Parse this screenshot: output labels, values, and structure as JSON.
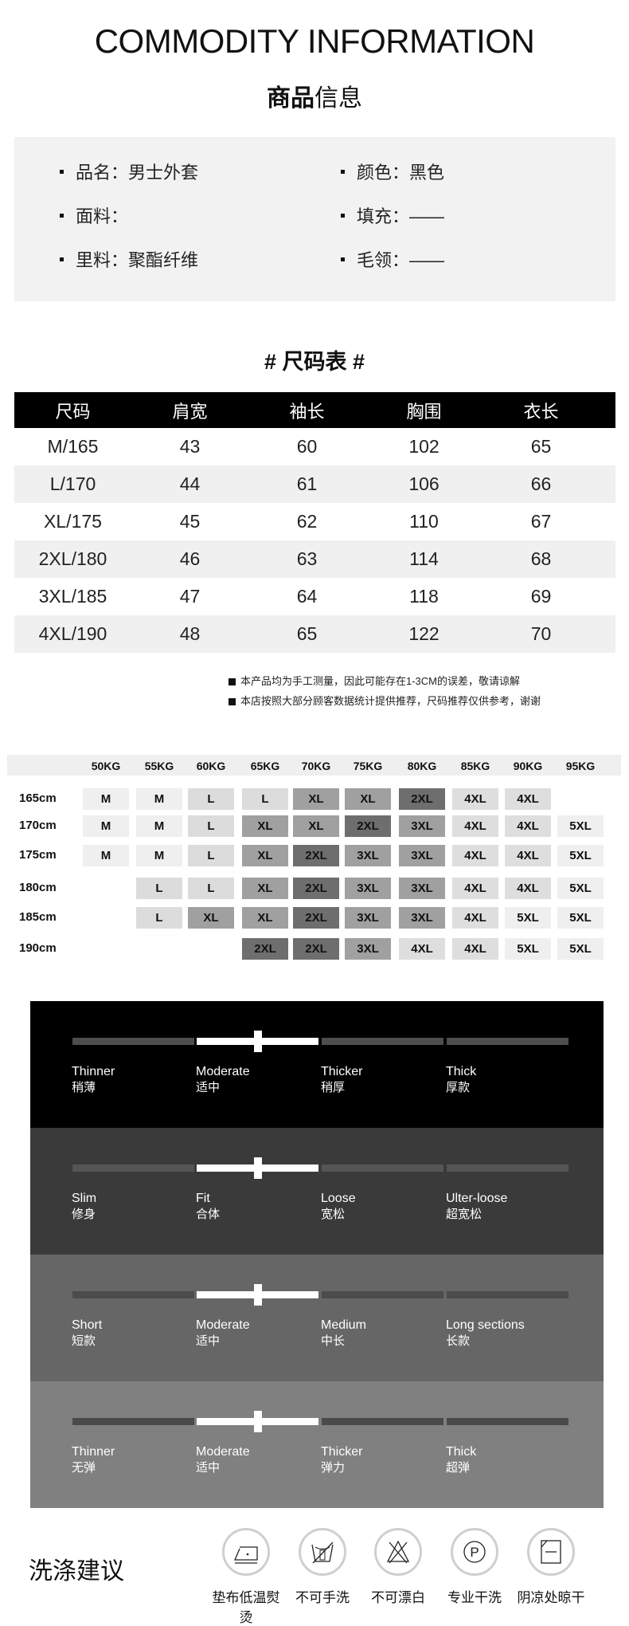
{
  "header": {
    "title": "COMMODITY INFORMATION",
    "subtitle_bold": "商品",
    "subtitle_rest": "信息"
  },
  "info": [
    {
      "label": "品名：男士外套"
    },
    {
      "label": "颜色：黑色"
    },
    {
      "label": "面料："
    },
    {
      "label": "填充：——"
    },
    {
      "label": "里料：聚酯纤维"
    },
    {
      "label": "毛领：——"
    }
  ],
  "size_chart": {
    "title": "# 尺码表 #",
    "headers": [
      "尺码",
      "肩宽",
      "袖长",
      "胸围",
      "衣长"
    ],
    "rows": [
      [
        "M/165",
        "43",
        "60",
        "102",
        "65"
      ],
      [
        "L/170",
        "44",
        "61",
        "106",
        "66"
      ],
      [
        "XL/175",
        "45",
        "62",
        "110",
        "67"
      ],
      [
        "2XL/180",
        "46",
        "63",
        "114",
        "68"
      ],
      [
        "3XL/185",
        "47",
        "64",
        "118",
        "69"
      ],
      [
        "4XL/190",
        "48",
        "65",
        "122",
        "70"
      ]
    ],
    "notes": [
      "本产品均为手工测量，因此可能存在1-3CM的误差，敬请谅解",
      "本店按照大部分顾客数据统计提供推荐，尺码推荐仅供参考，谢谢"
    ]
  },
  "recommend": {
    "weights": [
      "50KG",
      "55KG",
      "60KG",
      "65KG",
      "70KG",
      "75KG",
      "80KG",
      "85KG",
      "90KG",
      "95KG"
    ],
    "heights": [
      "165cm",
      "170cm",
      "175cm",
      "180cm",
      "185cm",
      "190cm"
    ],
    "grid": [
      [
        "M",
        "M",
        "L",
        "L",
        "XL",
        "XL",
        "2XL",
        "4XL",
        "4XL",
        ""
      ],
      [
        "M",
        "M",
        "L",
        "XL",
        "XL",
        "2XL",
        "3XL",
        "4XL",
        "4XL",
        "5XL"
      ],
      [
        "M",
        "M",
        "L",
        "XL",
        "2XL",
        "3XL",
        "3XL",
        "4XL",
        "4XL",
        "5XL"
      ],
      [
        "",
        "L",
        "L",
        "XL",
        "2XL",
        "3XL",
        "3XL",
        "4XL",
        "4XL",
        "5XL"
      ],
      [
        "",
        "L",
        "XL",
        "XL",
        "2XL",
        "3XL",
        "3XL",
        "4XL",
        "5XL",
        "5XL"
      ],
      [
        "",
        "",
        "",
        "2XL",
        "2XL",
        "3XL",
        "4XL",
        "4XL",
        "5XL",
        "5XL"
      ]
    ],
    "shades": {
      "M": "#efefef",
      "L": "#dcdcdc",
      "XL": "#a0a0a0",
      "2XL": "#6e6e6e",
      "3XL": "#a0a0a0",
      "4XL": "#dedede",
      "5XL": "#efefef"
    }
  },
  "features": [
    {
      "bg": "#000000",
      "track": "#4d4d4d",
      "selected": 1,
      "options": [
        [
          "Thinner",
          "稍薄"
        ],
        [
          "Moderate",
          "适中"
        ],
        [
          "Thicker",
          "稍厚"
        ],
        [
          "Thick",
          "厚款"
        ]
      ]
    },
    {
      "bg": "#3a3a3a",
      "track": "#555555",
      "selected": 1,
      "options": [
        [
          "Slim",
          "修身"
        ],
        [
          "Fit",
          "合体"
        ],
        [
          "Loose",
          "宽松"
        ],
        [
          "Ulter-loose",
          "超宽松"
        ]
      ]
    },
    {
      "bg": "#666666",
      "track": "#4c4c4c",
      "selected": 1,
      "options": [
        [
          "Short",
          "短款"
        ],
        [
          "Moderate",
          "适中"
        ],
        [
          "Medium",
          "中长"
        ],
        [
          "Long sections",
          "长款"
        ]
      ]
    },
    {
      "bg": "#808080",
      "track": "#4a4a4a",
      "selected": 1,
      "options": [
        [
          "Thinner",
          "无弹"
        ],
        [
          "Moderate",
          "适中"
        ],
        [
          "Thicker",
          "弹力"
        ],
        [
          "Thick",
          "超弹"
        ]
      ]
    }
  ],
  "washing": {
    "title": "洗涤建议",
    "items": [
      {
        "icon": "iron-low-temp-icon",
        "label": "垫布低温熨烫"
      },
      {
        "icon": "no-hand-wash-icon",
        "label": "不可手洗"
      },
      {
        "icon": "no-bleach-icon",
        "label": "不可漂白"
      },
      {
        "icon": "dry-clean-icon",
        "label": "专业干洗"
      },
      {
        "icon": "shade-dry-icon",
        "label": "阴凉处晾干"
      }
    ]
  }
}
